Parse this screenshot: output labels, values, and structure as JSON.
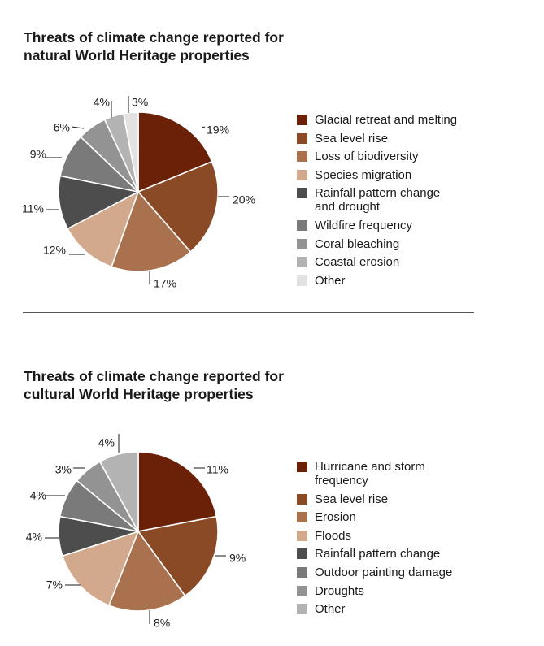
{
  "chart_data": [
    {
      "type": "pie",
      "title": "Threats of climate change reported for\nnatural World Heritage properties",
      "categories": [
        "Glacial retreat and melting",
        "Sea level rise",
        "Loss of biodiversity",
        "Species migration",
        "Rainfall pattern change\nand drought",
        "Wildfire frequency",
        "Coral bleaching",
        "Coastal erosion",
        "Other"
      ],
      "values": [
        19,
        20,
        17,
        12,
        11,
        9,
        6,
        4,
        3
      ],
      "value_labels": [
        "19%",
        "20%",
        "17%",
        "12%",
        "11%",
        "9%",
        "6%",
        "4%",
        "3%"
      ],
      "colors": [
        "#6b2108",
        "#8a4a26",
        "#a9714e",
        "#d3a98d",
        "#4d4d4d",
        "#7a7a7a",
        "#939393",
        "#b3b3b3",
        "#e2e2e2"
      ],
      "legend_placement": "right"
    },
    {
      "type": "pie",
      "title": "Threats of climate change reported for\ncultural World Heritage properties",
      "categories": [
        "Hurricane and storm\nfrequency",
        "Sea level rise",
        "Erosion",
        "Floods",
        "Rainfall pattern change",
        "Outdoor painting damage",
        "Droughts",
        "Other"
      ],
      "values": [
        11,
        9,
        8,
        7,
        4,
        4,
        3,
        4
      ],
      "value_labels": [
        "11%",
        "9%",
        "8%",
        "7%",
        "4%",
        "4%",
        "3%",
        "4%"
      ],
      "colors": [
        "#6b2108",
        "#8a4a26",
        "#a9714e",
        "#d3a98d",
        "#4d4d4d",
        "#7a7a7a",
        "#939393",
        "#b3b3b3"
      ],
      "legend_placement": "right"
    }
  ]
}
